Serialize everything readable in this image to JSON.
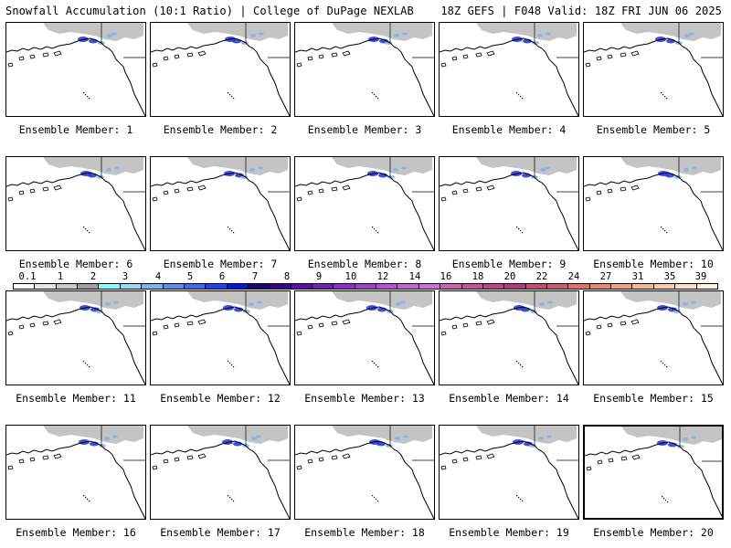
{
  "header": {
    "title": "Snowfall Accumulation (10:1 Ratio) | College of DuPage NEXLAB",
    "valid": "18Z GEFS | F048 Valid: 18Z FRI JUN 06 2025"
  },
  "panels": [
    {
      "label": "Ensemble Member: 1"
    },
    {
      "label": "Ensemble Member: 2"
    },
    {
      "label": "Ensemble Member: 3"
    },
    {
      "label": "Ensemble Member: 4"
    },
    {
      "label": "Ensemble Member: 5"
    },
    {
      "label": "Ensemble Member: 6"
    },
    {
      "label": "Ensemble Member: 7"
    },
    {
      "label": "Ensemble Member: 8"
    },
    {
      "label": "Ensemble Member: 9"
    },
    {
      "label": "Ensemble Member: 10"
    },
    {
      "label": "Ensemble Member: 11"
    },
    {
      "label": "Ensemble Member: 12"
    },
    {
      "label": "Ensemble Member: 13"
    },
    {
      "label": "Ensemble Member: 14"
    },
    {
      "label": "Ensemble Member: 15"
    },
    {
      "label": "Ensemble Member: 16"
    },
    {
      "label": "Ensemble Member: 17"
    },
    {
      "label": "Ensemble Member: 18"
    },
    {
      "label": "Ensemble Member: 19"
    },
    {
      "label": "Ensemble Member: 20"
    }
  ],
  "colorbar": {
    "ticks": [
      "0.1",
      "1",
      "2",
      "3",
      "4",
      "5",
      "6",
      "7",
      "8",
      "9",
      "10",
      "12",
      "14",
      "16",
      "18",
      "20",
      "22",
      "24",
      "27",
      "31",
      "35",
      "39"
    ],
    "colors": [
      "#ffffff",
      "#e6e6e6",
      "#c8c8c8",
      "#a0a0a0",
      "#7fffff",
      "#9ad8f5",
      "#7cb4f0",
      "#5a8ff0",
      "#3b6cf0",
      "#1a44f0",
      "#0018e0",
      "#26007a",
      "#3c0090",
      "#5a10a8",
      "#7020b8",
      "#8a30c8",
      "#a040d0",
      "#b850d8",
      "#c860d8",
      "#d070d0",
      "#d060b8",
      "#c850a0",
      "#c04090",
      "#b83880",
      "#c84878",
      "#d85870",
      "#e07068",
      "#e88870",
      "#f0a080",
      "#f5b890",
      "#f8cca8",
      "#fbe0c0",
      "#fff0d8"
    ]
  }
}
